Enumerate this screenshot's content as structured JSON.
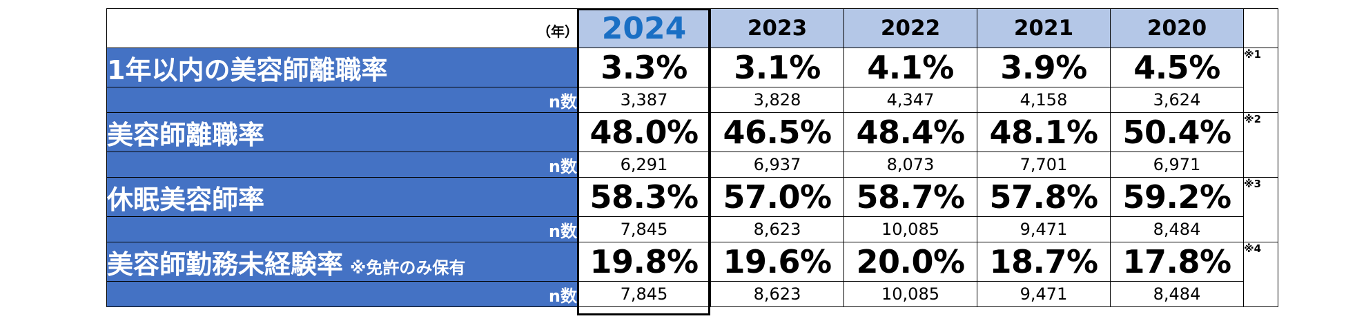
{
  "year_unit": "（年）",
  "years": [
    "2024",
    "2023",
    "2022",
    "2021",
    "2020"
  ],
  "rows": [
    {
      "label": "1年以内の美容師離職率",
      "note": "",
      "values": [
        "3.3%",
        "3.1%",
        "4.1%",
        "3.9%",
        "4.5%"
      ],
      "n_label": "n数",
      "n_values": [
        "3,387",
        "3,828",
        "4,347",
        "4,158",
        "3,624"
      ],
      "footnote": "※1"
    },
    {
      "label": "美容師離職率",
      "note": "",
      "values": [
        "48.0%",
        "46.5%",
        "48.4%",
        "48.1%",
        "50.4%"
      ],
      "n_label": "n数",
      "n_values": [
        "6,291",
        "6,937",
        "8,073",
        "7,701",
        "6,971"
      ],
      "footnote": "※2"
    },
    {
      "label": "休眠美容師率",
      "note": "",
      "values": [
        "58.3%",
        "57.0%",
        "58.7%",
        "57.8%",
        "59.2%"
      ],
      "n_label": "n数",
      "n_values": [
        "7,845",
        "8,623",
        "10,085",
        "9,471",
        "8,484"
      ],
      "footnote": "※3"
    },
    {
      "label": "美容師勤務未経験率",
      "note": "※免許のみ保有",
      "values": [
        "19.8%",
        "19.6%",
        "20.0%",
        "18.7%",
        "17.8%"
      ],
      "n_label": "n数",
      "n_values": [
        "7,845",
        "8,623",
        "10,085",
        "9,471",
        "8,484"
      ],
      "footnote": "※4"
    }
  ],
  "colors": {
    "header_bg": "#b4c7e7",
    "label_bg": "#4472c4",
    "current_year_text": "#1a6fc4"
  }
}
